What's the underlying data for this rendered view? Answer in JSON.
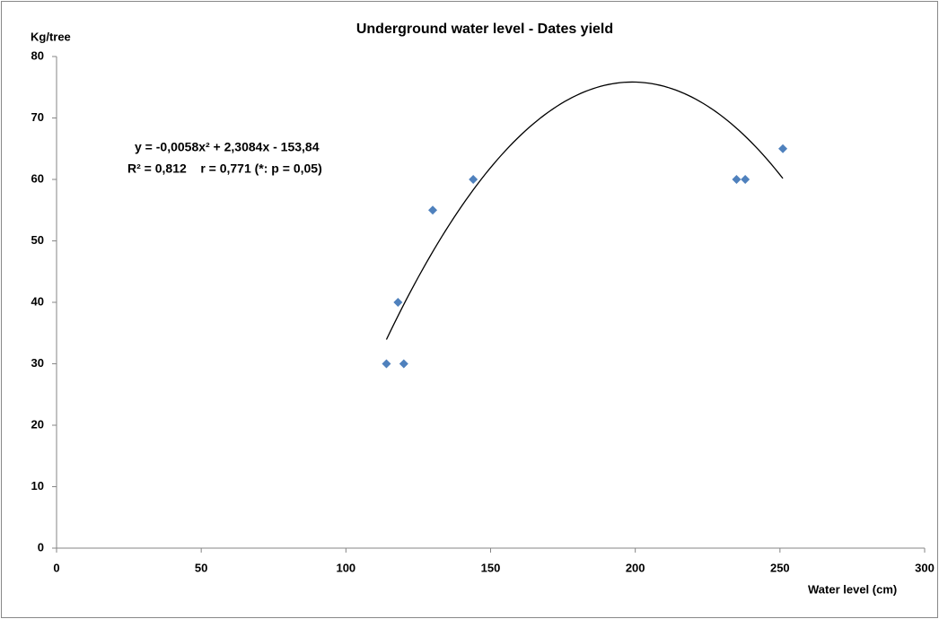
{
  "chart_data": {
    "type": "scatter",
    "title": "Underground water level - Dates yield",
    "x_label": "Water level (cm)",
    "y_label": "Kg/tree",
    "series": [
      {
        "color": "#4f81bd",
        "x": [
          114,
          118,
          120,
          130,
          144,
          235,
          238,
          251
        ],
        "values": [
          30,
          40,
          30,
          55,
          60,
          60,
          60,
          65
        ]
      }
    ],
    "trendline": {
      "type": "polynomial",
      "coefficients": [
        -0.0058,
        2.3084,
        -153.84
      ],
      "color": "#000000",
      "equation": "y = -0,0058x² + 2,3084x - 153,84",
      "stats": "R² = 0,812    r = 0,771 (*: p = 0,05)"
    },
    "xlim": [
      0,
      300
    ],
    "xticks": [
      0,
      50,
      100,
      150,
      200,
      250,
      300
    ],
    "ylim": [
      0,
      80
    ],
    "yticks": [
      0,
      10,
      20,
      30,
      40,
      50,
      60,
      70,
      80
    ]
  }
}
